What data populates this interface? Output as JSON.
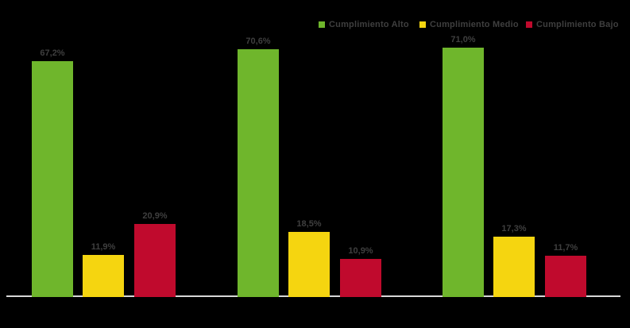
{
  "chart_data": {
    "type": "bar",
    "title": "",
    "xlabel": "",
    "ylabel": "",
    "categories": [
      "",
      "",
      ""
    ],
    "series": [
      {
        "name": "Cumplimiento Alto",
        "color": "#6FB62C",
        "values": [
          67.2,
          70.6,
          71.0
        ],
        "value_labels": [
          "67,2%",
          "70,6%",
          "71,0%"
        ]
      },
      {
        "name": "Cumplimiento Medio",
        "color": "#F5D510",
        "values": [
          11.9,
          18.5,
          17.3
        ],
        "value_labels": [
          "11,9%",
          "18,5%",
          "17,3%"
        ]
      },
      {
        "name": "Cumplimiento Bajo",
        "color": "#C00A2D",
        "values": [
          20.9,
          10.9,
          11.7
        ],
        "value_labels": [
          "20,9%",
          "10,9%",
          "11,7%"
        ]
      }
    ],
    "ylim": [
      0,
      100
    ],
    "grid": false,
    "legend_position": "top",
    "colors": {
      "background": "#000000",
      "axis_line": "#D8D8D8",
      "label_text": "#3F3F3F"
    }
  }
}
